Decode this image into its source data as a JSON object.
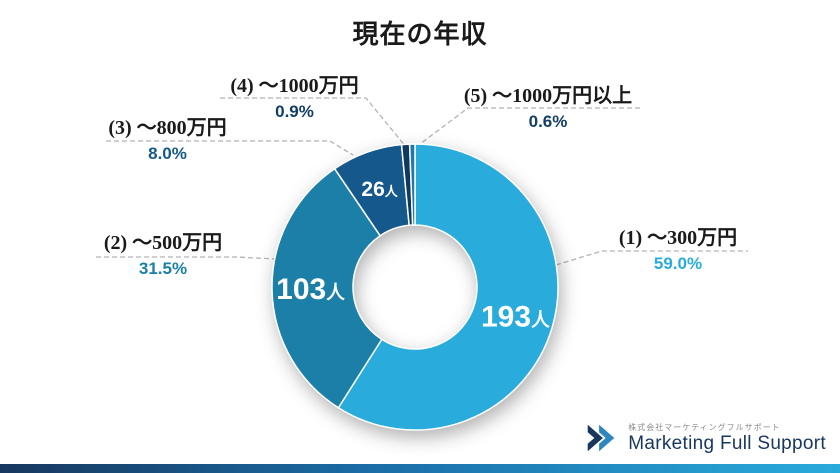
{
  "title": "現在の年収",
  "chart_data": {
    "type": "pie",
    "donut": true,
    "title": "現在の年収",
    "start_angle_deg": 0,
    "direction": "clockwise",
    "legend_position": "outside-callouts",
    "segments": [
      {
        "label": "(1) ～300万円",
        "percent": 59.0,
        "percent_label": "59.0%",
        "count": 193,
        "count_unit": "人",
        "color": "#29ABDC",
        "percent_color": "#29ABDC"
      },
      {
        "label": "(2) ～500万円",
        "percent": 31.5,
        "percent_label": "31.5%",
        "count": 103,
        "count_unit": "人",
        "color": "#1B7FA8",
        "percent_color": "#1B7FA8"
      },
      {
        "label": "(3) ～800万円",
        "percent": 8.0,
        "percent_label": "8.0%",
        "count": 26,
        "count_unit": "人",
        "color": "#15598C",
        "percent_color": "#15598C"
      },
      {
        "label": "(4) ～1000万円",
        "percent": 0.9,
        "percent_label": "0.9%",
        "color": "#10395F",
        "percent_color": "#123F66"
      },
      {
        "label": "(5) ～1000万円以上",
        "percent": 0.6,
        "percent_label": "0.6%",
        "color": "#2277AE",
        "percent_color": "#123F66"
      }
    ]
  },
  "footer": {
    "company_jp": "株式会社マーケティングフルサポート",
    "company_en": "Marketing Full Support"
  }
}
